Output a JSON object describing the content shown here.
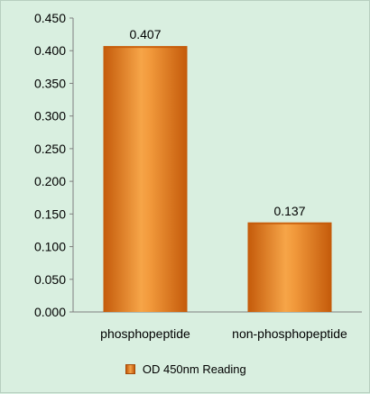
{
  "chart_data": {
    "type": "bar",
    "categories": [
      "phosphopeptide",
      "non-phosphopeptide"
    ],
    "series": [
      {
        "name": "OD 450nm Reading",
        "values": [
          0.407,
          0.137
        ]
      }
    ],
    "data_labels": [
      "0.407",
      "0.137"
    ],
    "yticks": [
      "0.000",
      "0.050",
      "0.100",
      "0.150",
      "0.200",
      "0.250",
      "0.300",
      "0.350",
      "0.400",
      "0.450"
    ],
    "ylim": [
      0,
      0.45
    ],
    "title": "",
    "xlabel": "",
    "ylabel": "",
    "grid": false,
    "legend_position": "bottom",
    "colors": {
      "bar": "#f08a1e",
      "bar_dark": "#c45a0a",
      "background": "#d9efe0",
      "axis": "#7f7f7f"
    }
  }
}
